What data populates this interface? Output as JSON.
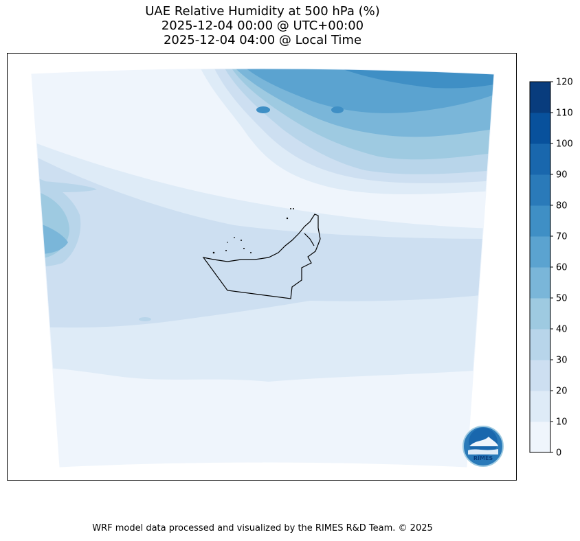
{
  "title": {
    "line1": "UAE Relative Humidity at 500 hPa (%)",
    "line2": "2025-12-04 00:00 @ UTC+00:00",
    "line3": "2025-12-04 04:00 @ Local Time"
  },
  "colorbar": {
    "levels": [
      "0",
      "10",
      "20",
      "30",
      "40",
      "50",
      "60",
      "70",
      "80",
      "90",
      "100",
      "110",
      "120"
    ],
    "colors": [
      "#eff5fc",
      "#deebf7",
      "#cddff1",
      "#b8d5ea",
      "#9ecae1",
      "#7ab6d9",
      "#5ba3d0",
      "#3f8fc5",
      "#2a7ab9",
      "#1967ad",
      "#08519c",
      "#083c7d"
    ]
  },
  "logo": {
    "text": "RIMES"
  },
  "footer": "WRF model data processed and visualized by the RIMES R&D Team. © 2025"
}
